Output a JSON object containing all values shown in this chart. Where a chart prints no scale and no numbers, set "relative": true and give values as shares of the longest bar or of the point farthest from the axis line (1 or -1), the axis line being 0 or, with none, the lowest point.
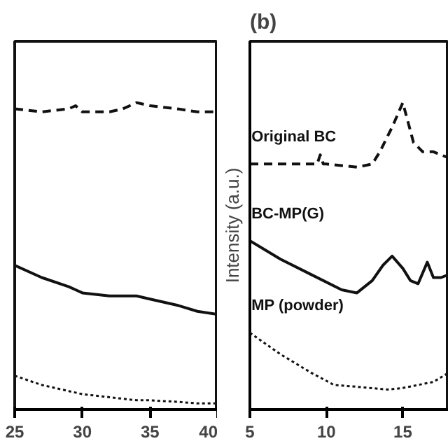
{
  "chart_data": [
    {
      "type": "line",
      "relative": true,
      "x": [
        25,
        27,
        29,
        29.5,
        30,
        32,
        33,
        34,
        35,
        37,
        38.5,
        40
      ],
      "xlim": [
        25,
        40
      ],
      "xticks": [
        25,
        30,
        35,
        40
      ],
      "tick_labels": "x",
      "grid": false,
      "series": [
        {
          "color": "#111111",
          "line_style": "dashed",
          "values": [
            0.98,
            0.97,
            0.98,
            0.99,
            0.97,
            0.97,
            0.98,
            1.0,
            0.99,
            0.98,
            0.97,
            0.97
          ]
        },
        {
          "color": "#111111",
          "line_style": "solid",
          "values": [
            0.47,
            0.43,
            0.4,
            0.39,
            0.38,
            0.37,
            0.37,
            0.37,
            0.36,
            0.34,
            0.32,
            0.31
          ]
        },
        {
          "color": "#111111",
          "line_style": "dotted",
          "values": [
            0.11,
            0.08,
            0.06,
            0.055,
            0.05,
            0.04,
            0.035,
            0.03,
            0.03,
            0.025,
            0.02,
            0.02
          ]
        }
      ]
    },
    {
      "type": "line",
      "relative": true,
      "title": "(b)",
      "ylabel": "Intensity (a.u.)",
      "xlim": [
        5,
        18
      ],
      "xticks": [
        5,
        10,
        15
      ],
      "tick_labels": "x",
      "grid": false,
      "series": [
        {
          "name": "Original BC",
          "color": "#111111",
          "line_style": "dashed",
          "x": [
            5,
            7,
            9,
            9.4,
            9.6,
            9.8,
            10,
            12,
            13,
            13.5,
            14.3,
            15,
            15.7,
            16.3,
            17,
            18
          ],
          "values": [
            0.8,
            0.8,
            0.8,
            0.8,
            0.83,
            0.8,
            0.8,
            0.79,
            0.8,
            0.84,
            0.92,
            1.0,
            0.87,
            0.84,
            0.84,
            0.82
          ]
        },
        {
          "name": "BC-MP(G)",
          "color": "#111111",
          "line_style": "solid",
          "x": [
            5,
            7,
            9,
            11,
            12,
            13,
            13.7,
            14.3,
            15,
            15.5,
            16,
            16.6,
            17,
            17.5,
            18
          ],
          "values": [
            0.55,
            0.49,
            0.44,
            0.39,
            0.38,
            0.42,
            0.47,
            0.5,
            0.46,
            0.42,
            0.41,
            0.48,
            0.43,
            0.43,
            0.44
          ]
        },
        {
          "name": "MP (powder)",
          "color": "#111111",
          "line_style": "dotted",
          "x": [
            5,
            7,
            9,
            10.5,
            12,
            14,
            15,
            17,
            18
          ],
          "values": [
            0.25,
            0.18,
            0.12,
            0.08,
            0.074,
            0.065,
            0.07,
            0.09,
            0.12
          ]
        }
      ]
    }
  ]
}
